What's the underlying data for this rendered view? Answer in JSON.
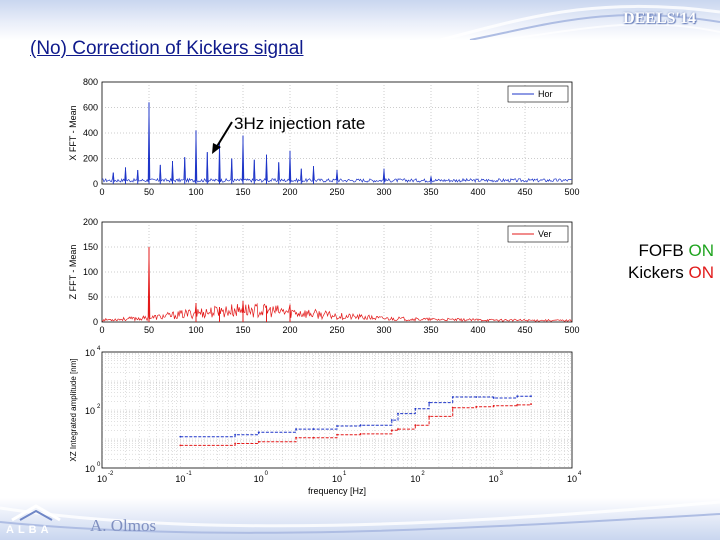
{
  "slide": {
    "conference": "DEELS'14",
    "title": "(No) Correction of Kickers signal",
    "annotation": "3Hz injection rate",
    "side_line1_prefix": "FOFB ",
    "side_line1_state": "ON",
    "side_line2_prefix": "Kickers ",
    "side_line2_state": "ON",
    "author": "A. Olmos",
    "logo_text": "ALBA",
    "colors": {
      "title": "#0f1a8c",
      "hor": "#1e35c8",
      "ver": "#e31a1a",
      "on_green": "#1fa41f",
      "on_red": "#e11b1b"
    }
  },
  "chart_data": [
    {
      "type": "line",
      "ylabel": "X FFT - Mean",
      "legend": "Hor",
      "legend_position": "top-right",
      "xlim": [
        0,
        500
      ],
      "ylim": [
        0,
        800
      ],
      "xticks": [
        "0",
        "50",
        "100",
        "150",
        "200",
        "250",
        "300",
        "350",
        "400",
        "450",
        "500"
      ],
      "yticks": [
        "0",
        "200",
        "400",
        "600",
        "800"
      ],
      "grid": true,
      "baseline": 30,
      "peaks": [
        {
          "x": 12,
          "y": 90
        },
        {
          "x": 25,
          "y": 130
        },
        {
          "x": 38,
          "y": 110
        },
        {
          "x": 50,
          "y": 640
        },
        {
          "x": 62,
          "y": 150
        },
        {
          "x": 75,
          "y": 180
        },
        {
          "x": 88,
          "y": 210
        },
        {
          "x": 100,
          "y": 420
        },
        {
          "x": 112,
          "y": 250
        },
        {
          "x": 125,
          "y": 330
        },
        {
          "x": 138,
          "y": 200
        },
        {
          "x": 150,
          "y": 380
        },
        {
          "x": 162,
          "y": 190
        },
        {
          "x": 175,
          "y": 230
        },
        {
          "x": 188,
          "y": 170
        },
        {
          "x": 200,
          "y": 260
        },
        {
          "x": 212,
          "y": 120
        },
        {
          "x": 225,
          "y": 140
        },
        {
          "x": 250,
          "y": 110
        },
        {
          "x": 300,
          "y": 120
        },
        {
          "x": 350,
          "y": 60
        }
      ]
    },
    {
      "type": "line",
      "ylabel": "Z FFT - Mean",
      "legend": "Ver",
      "legend_position": "top-right",
      "xlim": [
        0,
        500
      ],
      "ylim": [
        0,
        200
      ],
      "xticks": [
        "0",
        "50",
        "100",
        "150",
        "200",
        "250",
        "300",
        "350",
        "400",
        "450",
        "500"
      ],
      "yticks": [
        "0",
        "50",
        "100",
        "150",
        "200"
      ],
      "grid": true,
      "envelope": [
        {
          "x": 0,
          "y": 4
        },
        {
          "x": 50,
          "y": 8
        },
        {
          "x": 100,
          "y": 18
        },
        {
          "x": 150,
          "y": 24
        },
        {
          "x": 200,
          "y": 20
        },
        {
          "x": 250,
          "y": 12
        },
        {
          "x": 300,
          "y": 7
        },
        {
          "x": 350,
          "y": 5
        },
        {
          "x": 400,
          "y": 4
        },
        {
          "x": 500,
          "y": 3
        }
      ],
      "peaks": [
        {
          "x": 50,
          "y": 150
        },
        {
          "x": 100,
          "y": 38
        },
        {
          "x": 150,
          "y": 42
        },
        {
          "x": 200,
          "y": 35
        },
        {
          "x": 125,
          "y": 30
        },
        {
          "x": 175,
          "y": 32
        }
      ]
    },
    {
      "type": "line",
      "xlabel": "frequency [Hz]",
      "ylabel": "XZ Integrated amplitude [nm]",
      "xscale": "log",
      "yscale": "log",
      "xlim": [
        0.01,
        10000
      ],
      "ylim": [
        1,
        10000
      ],
      "xticks": [
        "-2|10",
        "-1|10",
        "0|10",
        "1|10",
        "2|10",
        "3|10",
        "4|10"
      ],
      "yticks": [
        "0|10",
        "2|10",
        "4|10"
      ],
      "grid": true,
      "series": [
        {
          "name": "Hor",
          "x": [
            0.1,
            0.5,
            1,
            3,
            5,
            10,
            20,
            50,
            60,
            100,
            150,
            300,
            600,
            1000,
            2000,
            3000
          ],
          "y": [
            12,
            14,
            17,
            22,
            22,
            28,
            30,
            45,
            75,
            110,
            180,
            280,
            280,
            260,
            300,
            300
          ]
        },
        {
          "name": "Ver",
          "x": [
            0.1,
            0.5,
            1,
            3,
            5,
            10,
            20,
            50,
            60,
            100,
            150,
            300,
            600,
            1000,
            2000,
            3000
          ],
          "y": [
            6,
            7,
            8,
            11,
            11,
            14,
            15,
            20,
            22,
            30,
            60,
            120,
            130,
            140,
            150,
            160
          ]
        }
      ]
    }
  ]
}
